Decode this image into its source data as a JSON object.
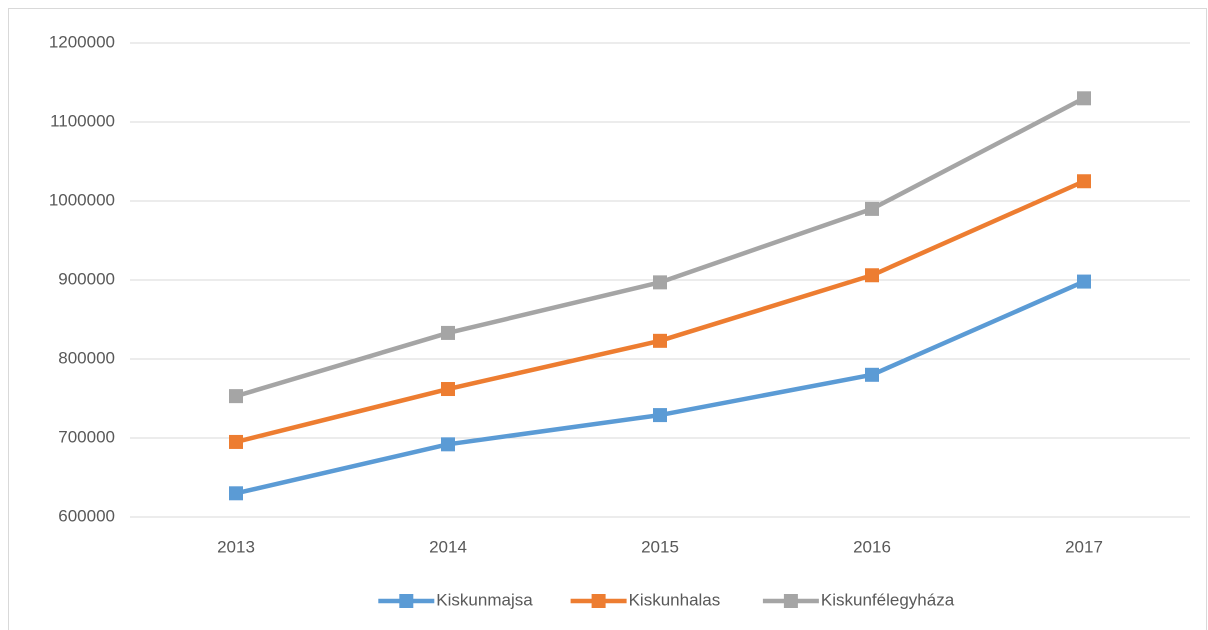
{
  "chart_data": {
    "type": "line",
    "categories": [
      "2013",
      "2014",
      "2015",
      "2016",
      "2017"
    ],
    "series": [
      {
        "name": "Kiskunmajsa",
        "color": "#5b9bd5",
        "values": [
          630000,
          692000,
          729000,
          780000,
          898000
        ]
      },
      {
        "name": "Kiskunhalas",
        "color": "#ed7d31",
        "values": [
          695000,
          762000,
          823000,
          906000,
          1025000
        ]
      },
      {
        "name": "Kiskunfélegyháza",
        "color": "#a5a5a5",
        "values": [
          753000,
          833000,
          897000,
          990000,
          1130000
        ]
      }
    ],
    "ylim": [
      600000,
      1200000
    ],
    "yticks": [
      600000,
      700000,
      800000,
      900000,
      1000000,
      1100000,
      1200000
    ],
    "grid": true,
    "legend": "bottom"
  }
}
